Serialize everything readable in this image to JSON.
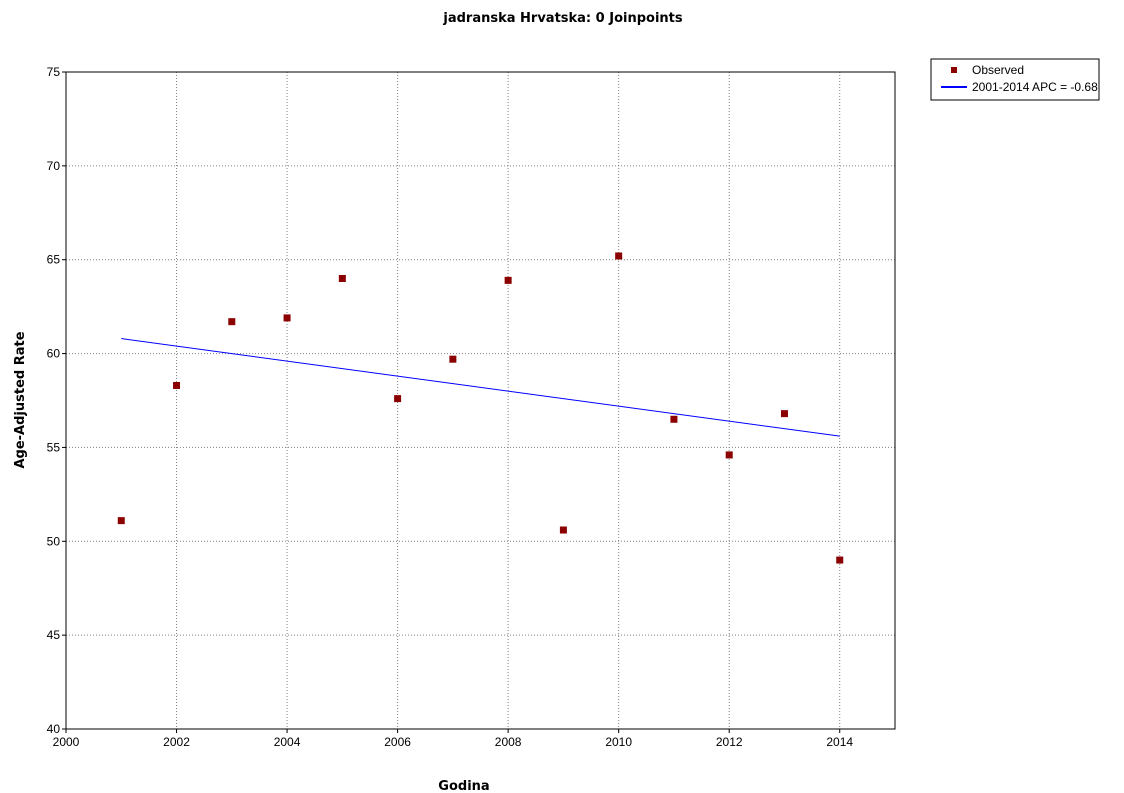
{
  "chart_data": {
    "type": "scatter",
    "title": "jadranska Hrvatska: 0 Joinpoints",
    "xlabel": "Godina",
    "ylabel": "Age-Adjusted Rate",
    "xlim": [
      2000,
      2015
    ],
    "ylim": [
      40,
      75
    ],
    "xticks": [
      2000,
      2002,
      2004,
      2006,
      2008,
      2010,
      2012,
      2014
    ],
    "yticks": [
      40,
      45,
      50,
      55,
      60,
      65,
      70,
      75
    ],
    "grid": true,
    "legend_position": "top-right outside",
    "series": [
      {
        "name": "Observed",
        "kind": "scatter",
        "marker": "square",
        "color": "#8b0000",
        "x": [
          2001,
          2002,
          2003,
          2004,
          2005,
          2006,
          2007,
          2008,
          2009,
          2010,
          2011,
          2012,
          2013,
          2014
        ],
        "y": [
          51.1,
          58.3,
          61.7,
          61.9,
          64.0,
          57.6,
          59.7,
          63.9,
          50.6,
          65.2,
          56.5,
          54.6,
          56.8,
          49.0
        ]
      },
      {
        "name": "2001-2014 APC  = -0.68",
        "kind": "line",
        "color": "#0000ff",
        "x": [
          2001,
          2014
        ],
        "y": [
          60.8,
          55.6
        ]
      }
    ]
  }
}
